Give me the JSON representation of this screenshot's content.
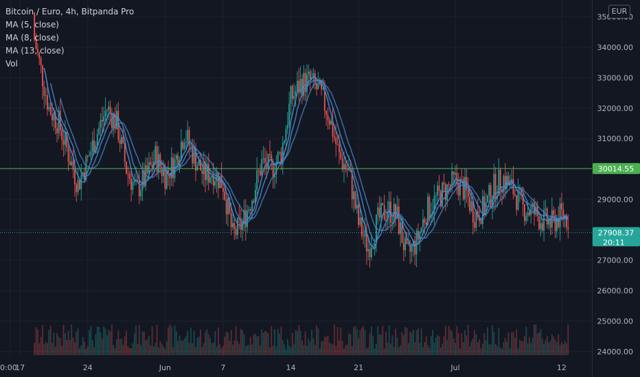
{
  "legend": {
    "title": "Bitcoin / Euro, 4h, Bitpanda Pro",
    "ma5": "MA (5, close)",
    "ma8": "MA (8, close)",
    "ma13": "MA (13, close)",
    "vol": "Vol"
  },
  "currency": "EUR",
  "colors": {
    "background": "#131722",
    "up": "#26a69a",
    "down": "#ef5350",
    "ma": "#4a86c5",
    "hline": "#4caf50",
    "price_badge": "#26a69a"
  },
  "chart_data": {
    "type": "candlestick",
    "ylim": [
      23950,
      35150
    ],
    "y_ticks": [
      "35000.00",
      "34000.00",
      "33000.00",
      "32000.00",
      "31000.00",
      "30000.00",
      "29000.00",
      "28000.00",
      "27000.00",
      "26000.00",
      "25000.00",
      "24000.00"
    ],
    "x_ticks": [
      "0:00",
      "17",
      "24",
      "Jun",
      "7",
      "14",
      "21",
      "Jul",
      "12"
    ],
    "x_tick_dates": [
      "2021-05-16",
      "2021-05-17",
      "2021-05-24",
      "2021-06-01",
      "2021-06-07",
      "2021-06-14",
      "2021-06-21",
      "2021-07-01",
      "2021-07-12"
    ],
    "date_range": [
      "2021-05-16",
      "2021-07-13"
    ],
    "horizontal_line": {
      "value": 30014.55,
      "label": "30014.55"
    },
    "last_price": {
      "value": 27908.37,
      "label": "27908.37",
      "countdown": "20:11"
    },
    "series": [
      {
        "name": "MA (5, close)"
      },
      {
        "name": "MA (8, close)"
      },
      {
        "name": "MA (13, close)"
      },
      {
        "name": "Vol"
      }
    ],
    "close_path": [
      [
        "2021-05-18",
        35000
      ],
      [
        "2021-05-19",
        33500
      ],
      [
        "2021-05-20",
        32000
      ],
      [
        "2021-05-21",
        31500
      ],
      [
        "2021-05-22",
        30500
      ],
      [
        "2021-05-23",
        29500
      ],
      [
        "2021-05-24",
        30300
      ],
      [
        "2021-05-25",
        31200
      ],
      [
        "2021-05-26",
        32000
      ],
      [
        "2021-05-27",
        31500
      ],
      [
        "2021-05-28",
        30000
      ],
      [
        "2021-05-29",
        29300
      ],
      [
        "2021-05-30",
        29700
      ],
      [
        "2021-05-31",
        30400
      ],
      [
        "2021-06-01",
        29800
      ],
      [
        "2021-06-02",
        30200
      ],
      [
        "2021-06-03",
        31200
      ],
      [
        "2021-06-04",
        30400
      ],
      [
        "2021-06-05",
        29800
      ],
      [
        "2021-06-06",
        29900
      ],
      [
        "2021-06-07",
        29500
      ],
      [
        "2021-06-08",
        27800
      ],
      [
        "2021-06-09",
        28200
      ],
      [
        "2021-06-10",
        29100
      ],
      [
        "2021-06-11",
        30200
      ],
      [
        "2021-06-12",
        30000
      ],
      [
        "2021-06-13",
        30500
      ],
      [
        "2021-06-14",
        32300
      ],
      [
        "2021-06-15",
        32800
      ],
      [
        "2021-06-16",
        32900
      ],
      [
        "2021-06-17",
        32500
      ],
      [
        "2021-06-18",
        31700
      ],
      [
        "2021-06-19",
        30400
      ],
      [
        "2021-06-20",
        29900
      ],
      [
        "2021-06-21",
        28200
      ],
      [
        "2021-06-22",
        27400
      ],
      [
        "2021-06-23",
        28300
      ],
      [
        "2021-06-24",
        28700
      ],
      [
        "2021-06-25",
        28400
      ],
      [
        "2021-06-26",
        27100
      ],
      [
        "2021-06-27",
        27600
      ],
      [
        "2021-06-28",
        28600
      ],
      [
        "2021-06-29",
        29000
      ],
      [
        "2021-06-30",
        29300
      ],
      [
        "2021-07-01",
        29600
      ],
      [
        "2021-07-02",
        29300
      ],
      [
        "2021-07-03",
        28500
      ],
      [
        "2021-07-04",
        28700
      ],
      [
        "2021-07-05",
        29400
      ],
      [
        "2021-07-06",
        29700
      ],
      [
        "2021-07-07",
        29300
      ],
      [
        "2021-07-08",
        28700
      ],
      [
        "2021-07-09",
        28600
      ],
      [
        "2021-07-10",
        28300
      ],
      [
        "2021-07-11",
        28200
      ],
      [
        "2021-07-12",
        28500
      ],
      [
        "2021-07-13",
        28300
      ]
    ]
  }
}
